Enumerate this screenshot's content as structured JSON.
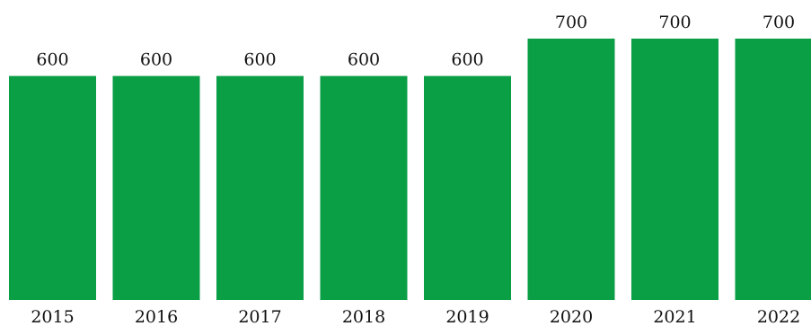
{
  "chart_data": {
    "type": "bar",
    "categories": [
      "2015",
      "2016",
      "2017",
      "2018",
      "2019",
      "2020",
      "2021",
      "2022"
    ],
    "values": [
      600,
      600,
      600,
      600,
      600,
      700,
      700,
      700
    ],
    "data_labels": [
      "600",
      "600",
      "600",
      "600",
      "600",
      "700",
      "700",
      "700"
    ],
    "title": "",
    "xlabel": "",
    "ylabel": "",
    "ylim": [
      0,
      700
    ],
    "grid": false,
    "legend": "none",
    "colors": {
      "bar": "#0a9e45",
      "text": "#111111"
    }
  }
}
